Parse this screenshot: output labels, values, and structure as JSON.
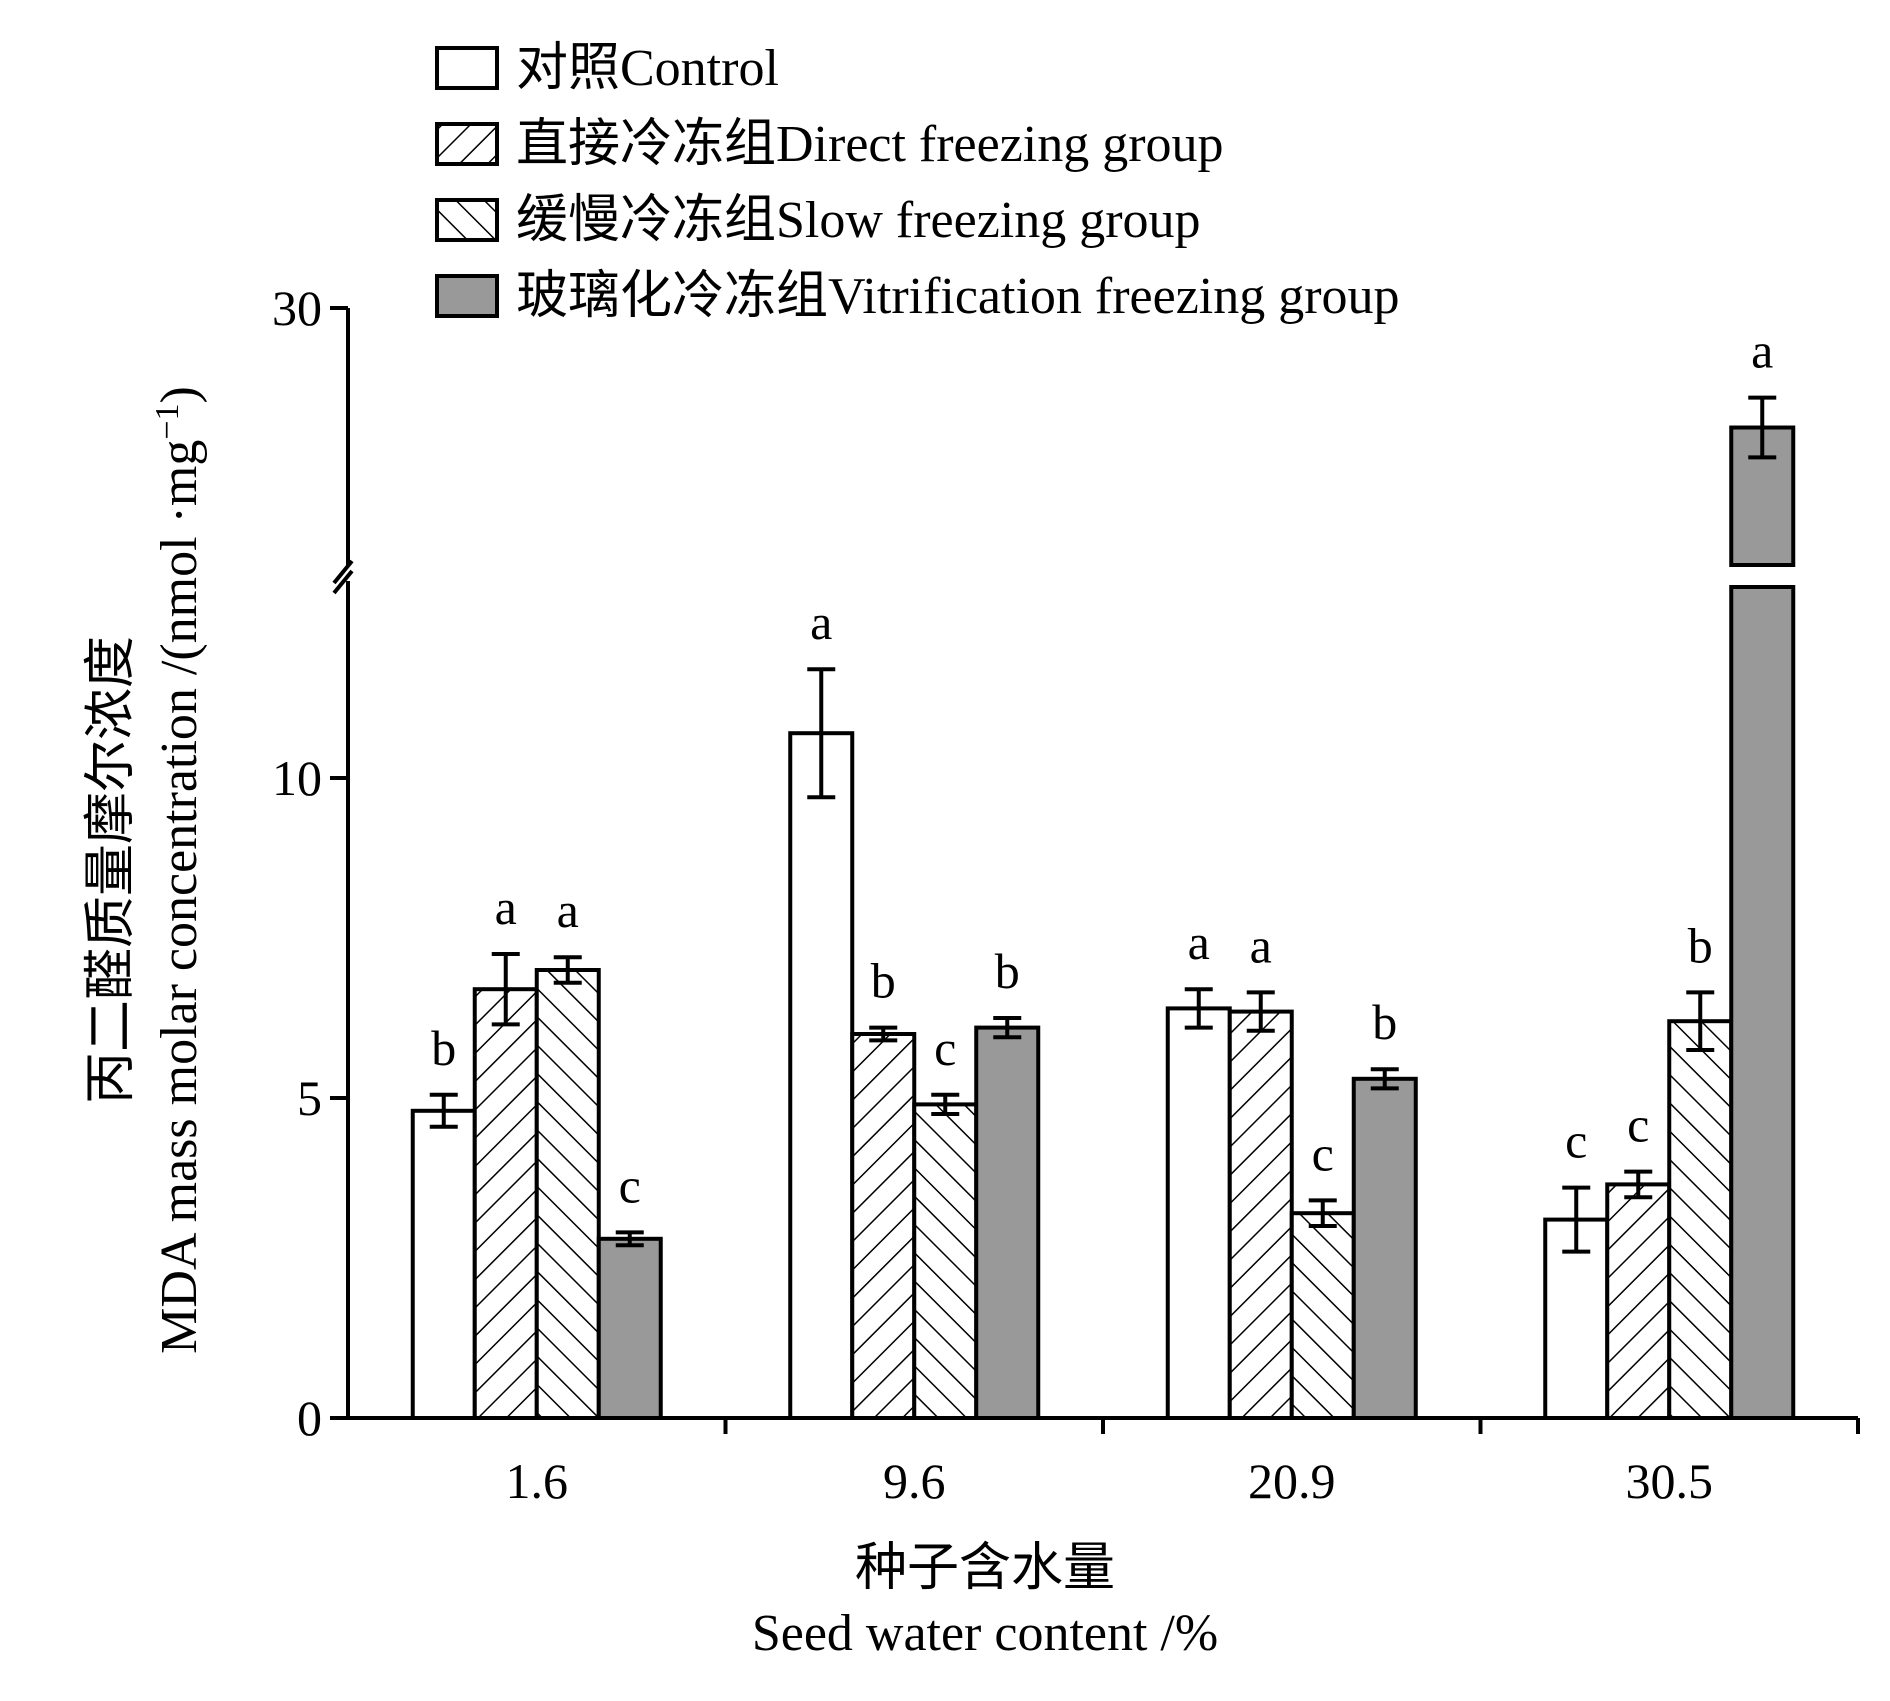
{
  "chart_data": {
    "type": "bar",
    "categories": [
      "1.6",
      "9.6",
      "20.9",
      "30.5"
    ],
    "series": [
      {
        "name": "对照Control",
        "pattern": "none",
        "values": [
          4.8,
          10.7,
          6.4,
          3.1
        ],
        "errors": [
          0.25,
          1.0,
          0.3,
          0.5
        ],
        "letters": [
          "b",
          "a",
          "a",
          "c"
        ]
      },
      {
        "name": "直接冷冻组Direct freezing group",
        "pattern": "hatch-forward",
        "values": [
          6.7,
          6.0,
          6.35,
          3.65
        ],
        "errors": [
          0.55,
          0.1,
          0.3,
          0.2
        ],
        "letters": [
          "a",
          "b",
          "a",
          "c"
        ]
      },
      {
        "name": "缓慢冷冻组Slow freezing group",
        "pattern": "hatch-back",
        "values": [
          7.0,
          4.9,
          3.2,
          6.2
        ],
        "errors": [
          0.2,
          0.15,
          0.2,
          0.45
        ],
        "letters": [
          "a",
          "c",
          "c",
          "b"
        ]
      },
      {
        "name": "玻璃化冷冻组Vitrification freezing group",
        "pattern": "gray",
        "color": "#999999",
        "values": [
          2.8,
          6.1,
          5.3,
          27.6
        ],
        "errors": [
          0.1,
          0.15,
          0.15,
          0.6
        ],
        "letters": [
          "c",
          "b",
          "b",
          "a"
        ]
      }
    ],
    "y_ticks": [
      0,
      5,
      10,
      30
    ],
    "ylim": [
      0,
      30
    ],
    "y_axis_break": [
      12.5,
      25.0
    ],
    "ylabel_cn": "丙二醛质量摩尔浓度",
    "ylabel_en": "MDA mass molar concentration /(nmol ·mg",
    "ylabel_sup": "−1",
    "ylabel_close": ")",
    "xlabel_cn": "种子含水量",
    "xlabel_en": "Seed water content /%",
    "legend_position": "top",
    "grid": false
  }
}
